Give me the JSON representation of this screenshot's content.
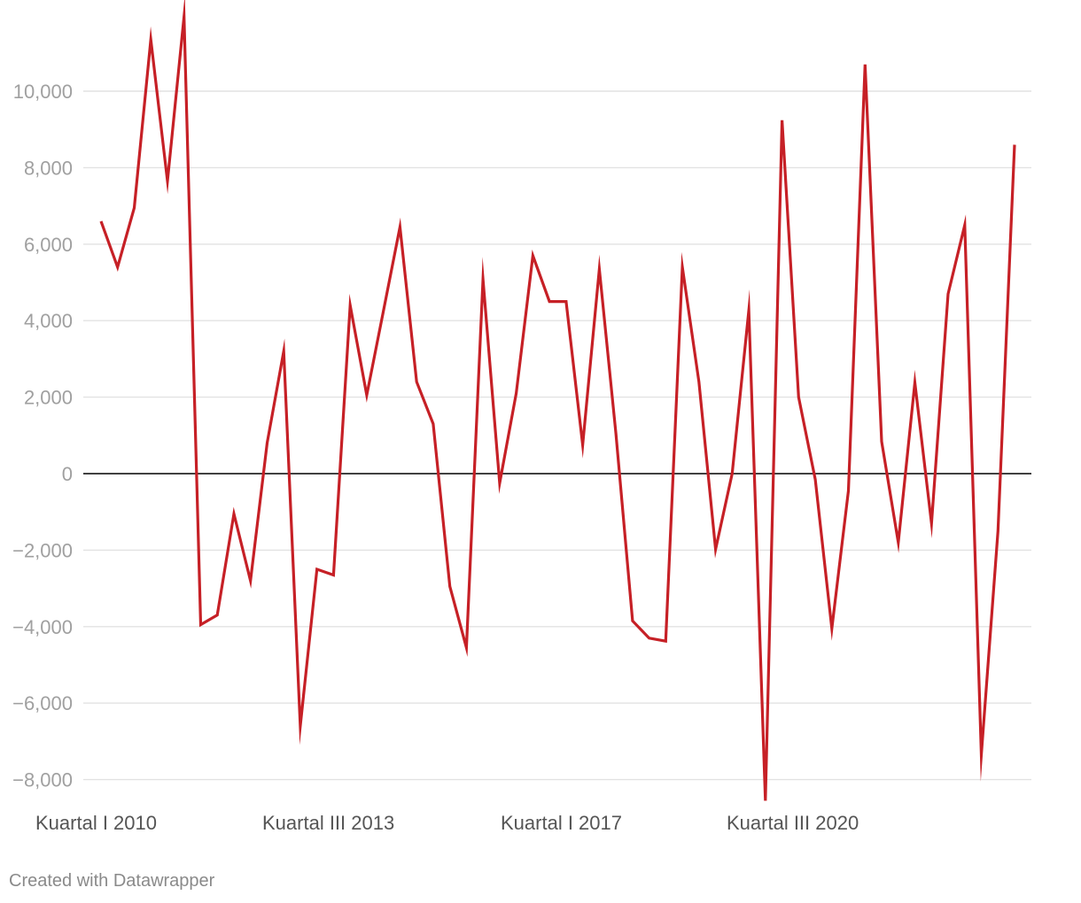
{
  "chart_data": {
    "type": "line",
    "title": "",
    "xlabel": "",
    "ylabel": "",
    "ylim": [
      -8600,
      12000
    ],
    "y_ticks": [
      10000,
      8000,
      6000,
      4000,
      2000,
      0,
      -2000,
      -4000,
      -6000,
      -8000
    ],
    "y_tick_labels": [
      "10,000",
      "8,000",
      "6,000",
      "4,000",
      "2,000",
      "0",
      "−2,000",
      "−4,000",
      "−6,000",
      "−8,000"
    ],
    "x_tick_labels": [
      {
        "index": 0,
        "label": "Kuartal I 2010"
      },
      {
        "index": 14,
        "label": "Kuartal III 2013"
      },
      {
        "index": 28,
        "label": "Kuartal I 2017"
      },
      {
        "index": 42,
        "label": "Kuartal III 2020"
      }
    ],
    "grid": true,
    "series": [
      {
        "color": "#c62026",
        "values": [
          6600,
          5400,
          6950,
          11350,
          7650,
          11950,
          -3950,
          -3700,
          -1050,
          -2800,
          800,
          3200,
          -6600,
          -2500,
          -2650,
          4400,
          2050,
          4250,
          6450,
          2400,
          1300,
          -2950,
          -4550,
          5080,
          -250,
          2100,
          5700,
          4500,
          4500,
          750,
          5350,
          1050,
          -3850,
          -4300,
          -4380,
          5400,
          2400,
          -1980,
          0,
          4270,
          -8550,
          9240,
          2000,
          -150,
          -4050,
          -450,
          10700,
          840,
          -1800,
          2380,
          -1300,
          4700,
          6500,
          -7350,
          -1500,
          8600
        ]
      }
    ]
  },
  "footer": {
    "credit": "Created with Datawrapper"
  }
}
